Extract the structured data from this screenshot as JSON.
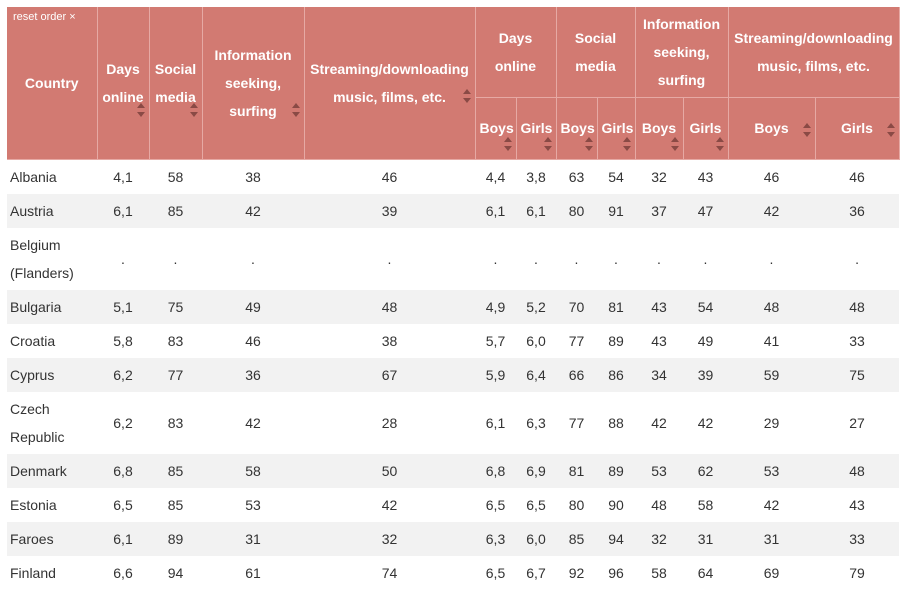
{
  "reset_label": "reset order ×",
  "headers": {
    "country": "Country",
    "days_online": "Days online",
    "social_media": "Social media",
    "information": "Information seeking, surfing",
    "streaming": "Streaming/downloading music, films, etc.",
    "boys": "Boys",
    "girls": "Girls"
  },
  "rows": [
    {
      "country": "Albania",
      "v": [
        "4,1",
        "58",
        "38",
        "46",
        "4,4",
        "3,8",
        "63",
        "54",
        "32",
        "43",
        "46",
        "46"
      ]
    },
    {
      "country": "Austria",
      "v": [
        "6,1",
        "85",
        "42",
        "39",
        "6,1",
        "6,1",
        "80",
        "91",
        "37",
        "47",
        "42",
        "36"
      ]
    },
    {
      "country": "Belgium (Flanders)",
      "v": [
        ".",
        ".",
        ".",
        ".",
        ".",
        ".",
        ".",
        ".",
        ".",
        ".",
        ".",
        "."
      ]
    },
    {
      "country": "Bulgaria",
      "v": [
        "5,1",
        "75",
        "49",
        "48",
        "4,9",
        "5,2",
        "70",
        "81",
        "43",
        "54",
        "48",
        "48"
      ]
    },
    {
      "country": "Croatia",
      "v": [
        "5,8",
        "83",
        "46",
        "38",
        "5,7",
        "6,0",
        "77",
        "89",
        "43",
        "49",
        "41",
        "33"
      ]
    },
    {
      "country": "Cyprus",
      "v": [
        "6,2",
        "77",
        "36",
        "67",
        "5,9",
        "6,4",
        "66",
        "86",
        "34",
        "39",
        "59",
        "75"
      ]
    },
    {
      "country": "Czech Republic",
      "v": [
        "6,2",
        "83",
        "42",
        "28",
        "6,1",
        "6,3",
        "77",
        "88",
        "42",
        "42",
        "29",
        "27"
      ]
    },
    {
      "country": "Denmark",
      "v": [
        "6,8",
        "85",
        "58",
        "50",
        "6,8",
        "6,9",
        "81",
        "89",
        "53",
        "62",
        "53",
        "48"
      ]
    },
    {
      "country": "Estonia",
      "v": [
        "6,5",
        "85",
        "53",
        "42",
        "6,5",
        "6,5",
        "80",
        "90",
        "48",
        "58",
        "42",
        "43"
      ]
    },
    {
      "country": "Faroes",
      "v": [
        "6,1",
        "89",
        "31",
        "32",
        "6,3",
        "6,0",
        "85",
        "94",
        "32",
        "31",
        "31",
        "33"
      ]
    },
    {
      "country": "Finland",
      "v": [
        "6,6",
        "94",
        "61",
        "74",
        "6,5",
        "6,7",
        "92",
        "96",
        "58",
        "64",
        "69",
        "79"
      ]
    }
  ]
}
